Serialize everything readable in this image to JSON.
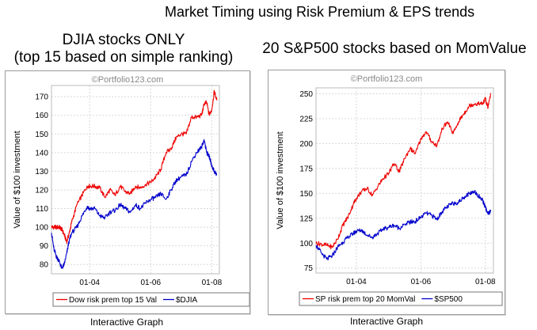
{
  "page": {
    "title": "Market Timing using Risk Premium & EPS trends",
    "left_heading_line1": "DJIA stocks ONLY",
    "left_heading_line2": "(top 15 based on simple ranking)",
    "right_heading": "20 S&P500 stocks based on MomValue",
    "left_caption": "Interactive Graph",
    "right_caption": "Interactive Graph"
  },
  "colors": {
    "strategy": "#ee0000",
    "benchmark": "#0000cc",
    "grid": "#d8d8d8",
    "frame": "#9a9a9a"
  },
  "chart_data": [
    {
      "type": "line",
      "watermark": "©Portfolio123.com",
      "ylabel": "Value of $100 investment",
      "xlabel": "",
      "ylim": [
        75,
        176
      ],
      "yticks": [
        80,
        90,
        100,
        110,
        120,
        130,
        140,
        150,
        160,
        170
      ],
      "xlim": [
        "2002-10",
        "2008-04"
      ],
      "xticks": [
        {
          "value": "2004-01",
          "label": "01-04"
        },
        {
          "value": "2006-01",
          "label": "01-06"
        },
        {
          "value": "2008-01",
          "label": "01-08"
        }
      ],
      "grid": true,
      "legend": "bottom",
      "series": [
        {
          "name": "Dow risk prem top 15 Val",
          "color": "#ee0000",
          "x": [
            "2002-10",
            "2002-11",
            "2002-12",
            "2003-01",
            "2003-02",
            "2003-03",
            "2003-04",
            "2003-05",
            "2003-06",
            "2003-08",
            "2003-10",
            "2003-12",
            "2004-01",
            "2004-03",
            "2004-05",
            "2004-07",
            "2004-09",
            "2004-11",
            "2005-01",
            "2005-03",
            "2005-05",
            "2005-07",
            "2005-09",
            "2005-11",
            "2006-01",
            "2006-03",
            "2006-05",
            "2006-07",
            "2006-09",
            "2006-11",
            "2007-01",
            "2007-03",
            "2007-05",
            "2007-07",
            "2007-09",
            "2007-10",
            "2007-11",
            "2007-12",
            "2008-01",
            "2008-02",
            "2008-03"
          ],
          "values": [
            100,
            100,
            100,
            100,
            99,
            96,
            92,
            97,
            103,
            112,
            117,
            122,
            122,
            122,
            121,
            116,
            120,
            117,
            122,
            119,
            118,
            122,
            121,
            123,
            124,
            127,
            131,
            140,
            142,
            148,
            150,
            150,
            159,
            159,
            160,
            166,
            167,
            160,
            163,
            173,
            168
          ]
        },
        {
          "name": "$DJIA",
          "color": "#0000cc",
          "x": [
            "2002-10",
            "2002-11",
            "2002-12",
            "2003-01",
            "2003-02",
            "2003-03",
            "2003-04",
            "2003-05",
            "2003-06",
            "2003-08",
            "2003-10",
            "2003-12",
            "2004-01",
            "2004-03",
            "2004-05",
            "2004-07",
            "2004-09",
            "2004-11",
            "2005-01",
            "2005-03",
            "2005-05",
            "2005-07",
            "2005-09",
            "2005-11",
            "2006-01",
            "2006-03",
            "2006-05",
            "2006-07",
            "2006-09",
            "2006-11",
            "2007-01",
            "2007-03",
            "2007-05",
            "2007-07",
            "2007-09",
            "2007-10",
            "2007-11",
            "2007-12",
            "2008-01",
            "2008-02",
            "2008-03"
          ],
          "values": [
            97,
            88,
            84,
            82,
            78,
            80,
            86,
            93,
            97,
            100,
            106,
            111,
            110,
            110,
            106,
            105,
            108,
            109,
            112,
            110,
            108,
            112,
            110,
            113,
            115,
            116,
            118,
            115,
            120,
            125,
            127,
            128,
            135,
            140,
            143,
            147,
            140,
            138,
            133,
            130,
            128
          ]
        }
      ]
    },
    {
      "type": "line",
      "watermark": "©Portfolio123.com",
      "ylabel": "Value of $100 investment",
      "xlabel": "",
      "ylim": [
        70,
        256
      ],
      "yticks": [
        75,
        100,
        125,
        150,
        175,
        200,
        225,
        250
      ],
      "xlim": [
        "2002-10",
        "2008-04"
      ],
      "xticks": [
        {
          "value": "2004-01",
          "label": "01-04"
        },
        {
          "value": "2006-01",
          "label": "01-06"
        },
        {
          "value": "2008-01",
          "label": "01-08"
        }
      ],
      "grid": true,
      "legend": "bottom",
      "series": [
        {
          "name": "SP risk prem top 20 MomVal",
          "color": "#ee0000",
          "x": [
            "2002-10",
            "2002-12",
            "2003-02",
            "2003-04",
            "2003-06",
            "2003-08",
            "2003-10",
            "2003-12",
            "2004-01",
            "2004-03",
            "2004-05",
            "2004-07",
            "2004-09",
            "2004-11",
            "2005-01",
            "2005-03",
            "2005-05",
            "2005-07",
            "2005-09",
            "2005-11",
            "2006-01",
            "2006-03",
            "2006-05",
            "2006-07",
            "2006-09",
            "2006-11",
            "2007-01",
            "2007-03",
            "2007-05",
            "2007-07",
            "2007-09",
            "2007-11",
            "2007-12",
            "2008-01",
            "2008-02",
            "2008-03"
          ],
          "values": [
            100,
            99,
            98,
            96,
            104,
            118,
            127,
            140,
            145,
            152,
            155,
            148,
            157,
            165,
            170,
            180,
            172,
            185,
            195,
            190,
            205,
            212,
            202,
            198,
            215,
            222,
            210,
            222,
            230,
            238,
            240,
            240,
            240,
            245,
            236,
            250
          ]
        },
        {
          "name": "$SP500",
          "color": "#0000cc",
          "x": [
            "2002-10",
            "2002-12",
            "2003-02",
            "2003-04",
            "2003-06",
            "2003-08",
            "2003-10",
            "2003-12",
            "2004-01",
            "2004-03",
            "2004-05",
            "2004-07",
            "2004-09",
            "2004-11",
            "2005-01",
            "2005-03",
            "2005-05",
            "2005-07",
            "2005-09",
            "2005-11",
            "2006-01",
            "2006-03",
            "2006-05",
            "2006-07",
            "2006-09",
            "2006-11",
            "2007-01",
            "2007-03",
            "2007-05",
            "2007-07",
            "2007-09",
            "2007-11",
            "2007-12",
            "2008-01",
            "2008-02",
            "2008-03"
          ],
          "values": [
            98,
            90,
            84,
            87,
            96,
            101,
            106,
            110,
            112,
            113,
            108,
            106,
            110,
            114,
            116,
            118,
            115,
            119,
            121,
            122,
            126,
            130,
            128,
            124,
            132,
            137,
            140,
            141,
            146,
            150,
            152,
            146,
            143,
            136,
            129,
            132
          ]
        }
      ]
    }
  ]
}
